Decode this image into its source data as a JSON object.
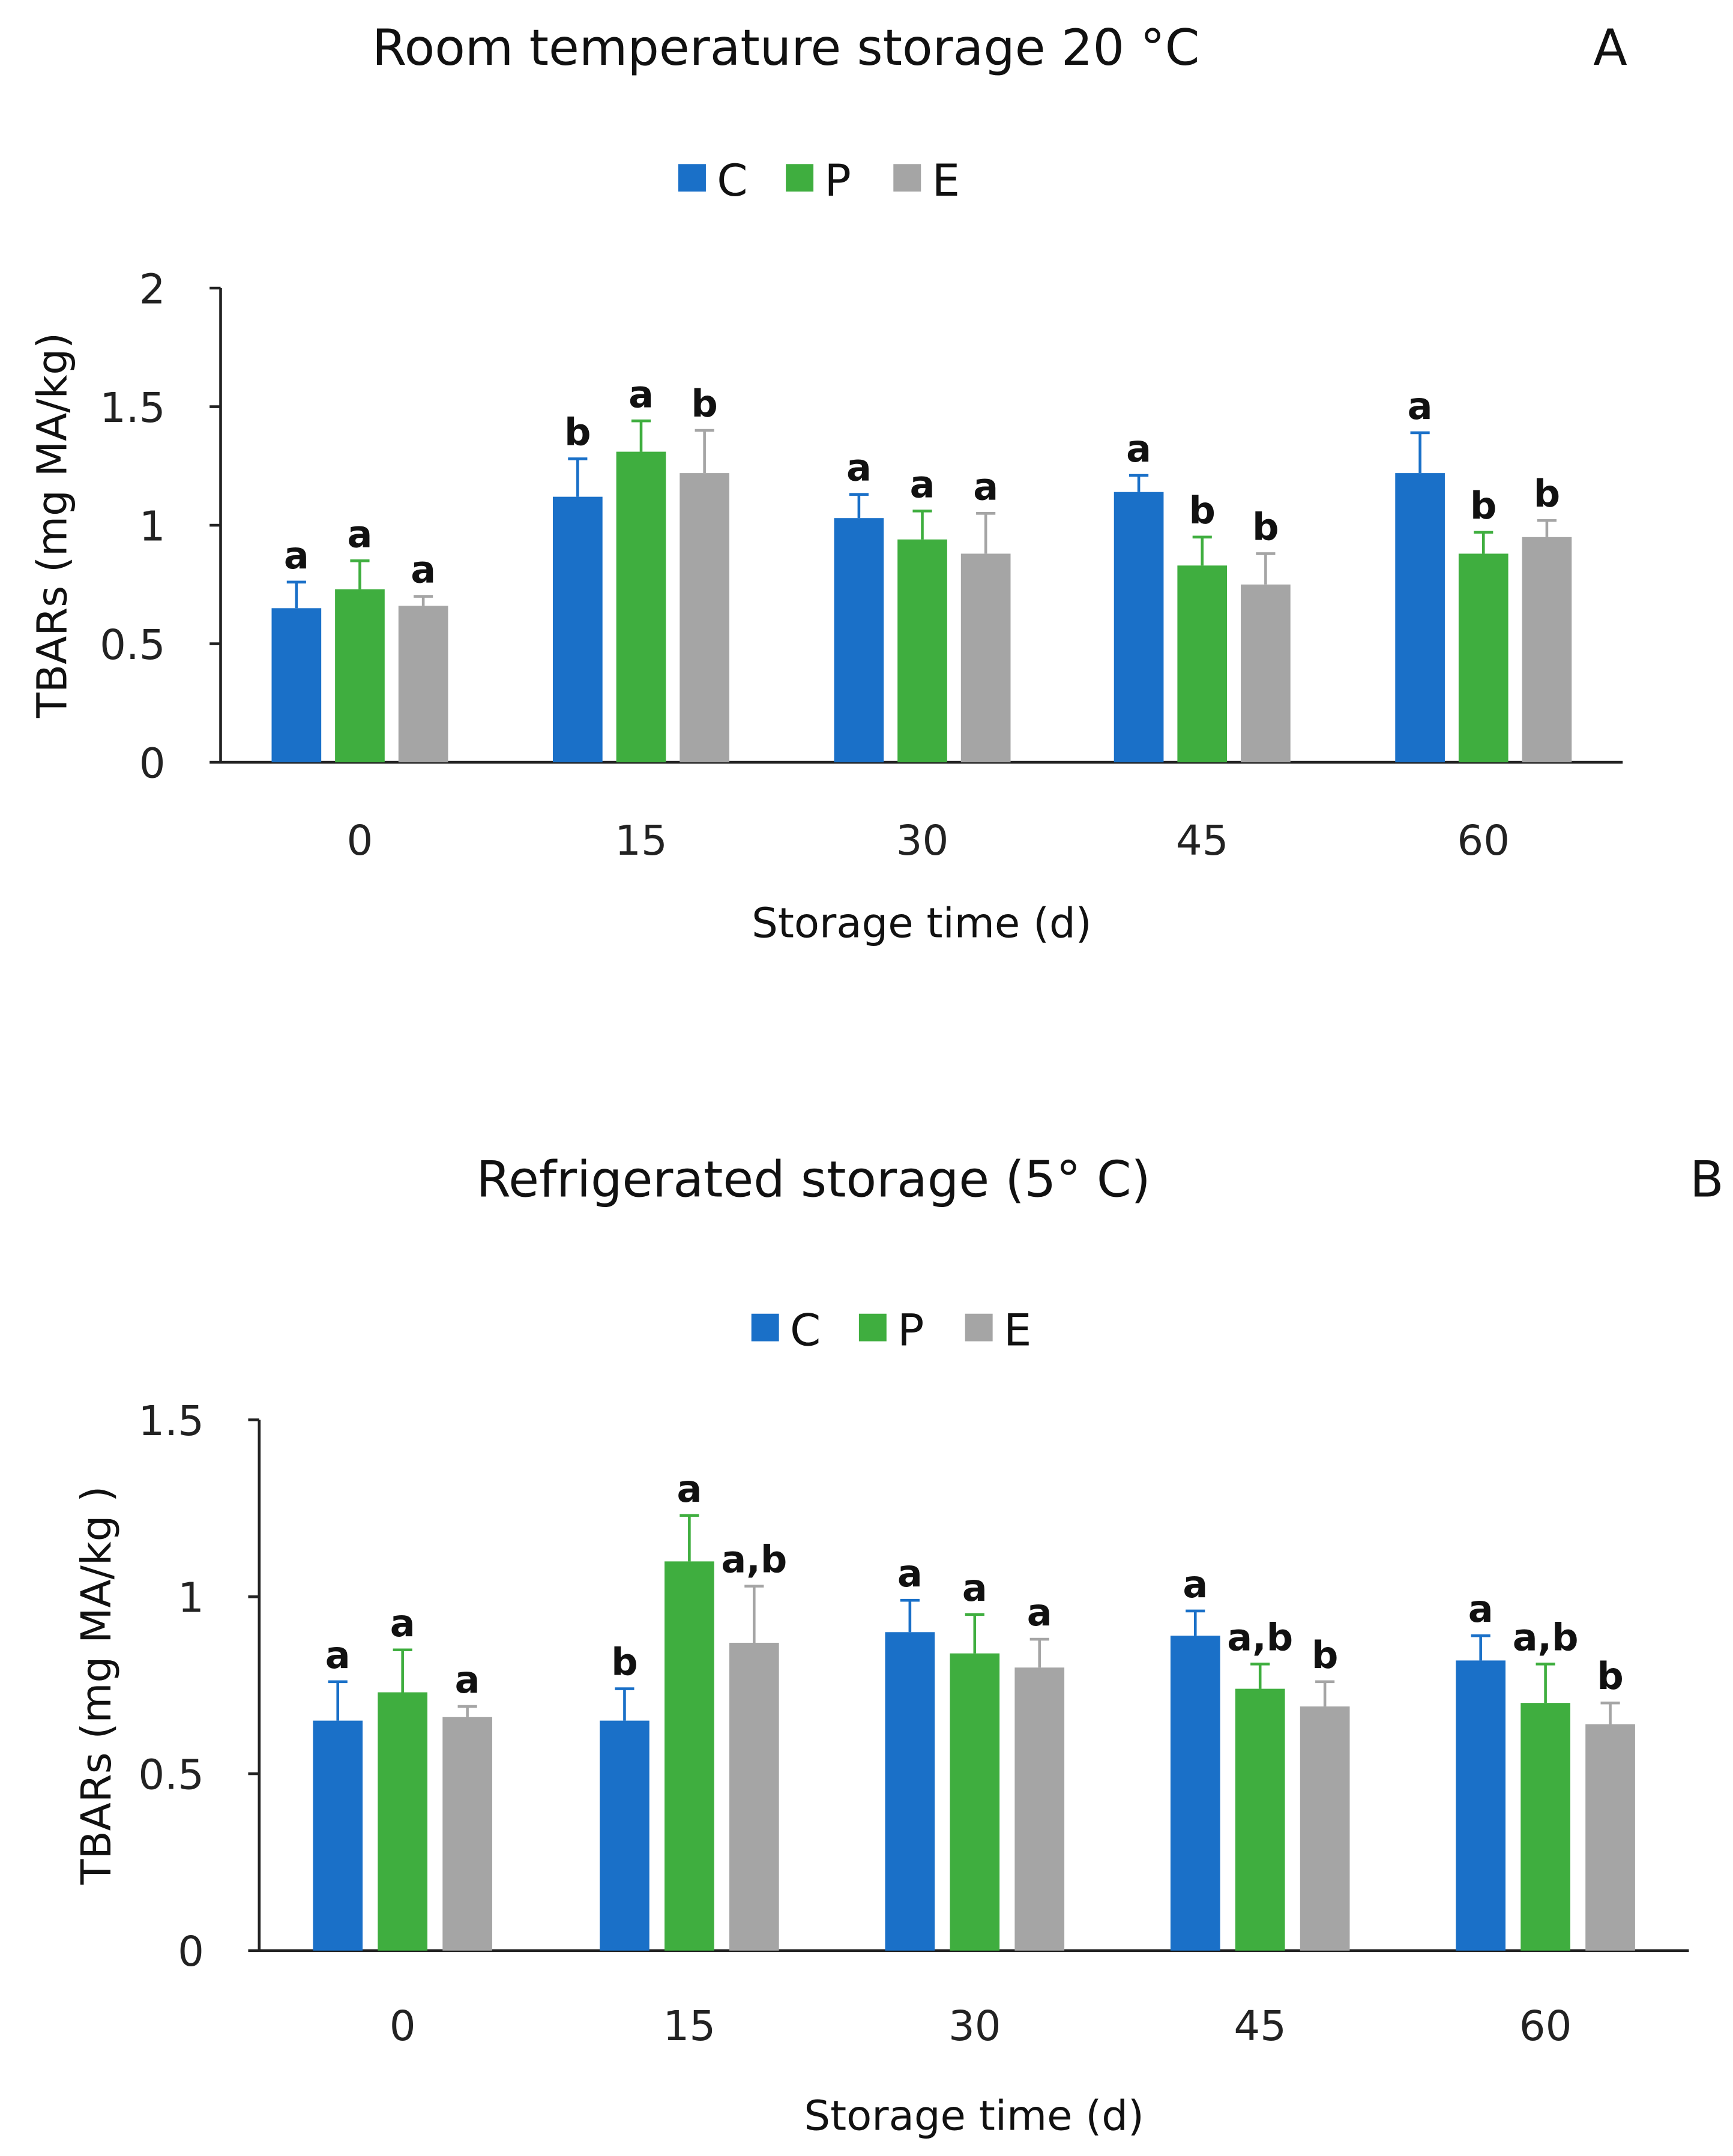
{
  "chart_data": [
    {
      "type": "bar",
      "panel": "A",
      "title": "Room temperature storage  20 °C",
      "xlabel": "Storage time (d)",
      "ylabel": "TBARs (mg MA/kg)",
      "ylim": [
        0,
        2
      ],
      "yticks": [
        "0",
        "0.5",
        "1",
        "1.5",
        "2"
      ],
      "ytick_values": [
        0,
        0.5,
        1,
        1.5,
        2
      ],
      "categories": [
        "0",
        "15",
        "30",
        "45",
        "60"
      ],
      "legend": "top-center",
      "series": [
        {
          "name": "C",
          "color": "#1a70c8",
          "values": [
            0.65,
            1.12,
            1.03,
            1.14,
            1.22
          ],
          "error_upper": [
            0.76,
            1.28,
            1.13,
            1.21,
            1.39
          ],
          "letters": [
            "a",
            "b",
            "a",
            "a",
            "a"
          ]
        },
        {
          "name": "P",
          "color": "#3fae3f",
          "values": [
            0.73,
            1.31,
            0.94,
            0.83,
            0.88
          ],
          "error_upper": [
            0.85,
            1.44,
            1.06,
            0.95,
            0.97
          ],
          "letters": [
            "a",
            "a",
            "a",
            "b",
            "b"
          ]
        },
        {
          "name": "E",
          "color": "#a5a5a5",
          "values": [
            0.66,
            1.22,
            0.88,
            0.75,
            0.95
          ],
          "error_upper": [
            0.7,
            1.4,
            1.05,
            0.88,
            1.02
          ],
          "letters": [
            "a",
            "b",
            "a",
            "b",
            "b"
          ]
        }
      ]
    },
    {
      "type": "bar",
      "panel": "B",
      "title": "Refrigerated storage  (5° C)",
      "xlabel": "Storage time (d)",
      "ylabel": "TBARs (mg MA/kg )",
      "ylim": [
        0,
        1.5
      ],
      "yticks": [
        "0",
        "0.5",
        "1",
        "1.5"
      ],
      "ytick_values": [
        0,
        0.5,
        1,
        1.5
      ],
      "categories": [
        "0",
        "15",
        "30",
        "45",
        "60"
      ],
      "legend": "top-center",
      "series": [
        {
          "name": "C",
          "color": "#1a70c8",
          "values": [
            0.65,
            0.65,
            0.9,
            0.89,
            0.82
          ],
          "error_upper": [
            0.76,
            0.74,
            0.99,
            0.96,
            0.89
          ],
          "letters": [
            "a",
            "b",
            "a",
            "a",
            "a"
          ]
        },
        {
          "name": "P",
          "color": "#3fae3f",
          "values": [
            0.73,
            1.1,
            0.84,
            0.74,
            0.7
          ],
          "error_upper": [
            0.85,
            1.23,
            0.95,
            0.81,
            0.81
          ],
          "letters": [
            "a",
            "a",
            "a",
            "a,b",
            "a,b"
          ]
        },
        {
          "name": "E",
          "color": "#a5a5a5",
          "values": [
            0.66,
            0.87,
            0.8,
            0.69,
            0.64
          ],
          "error_upper": [
            0.69,
            1.03,
            0.88,
            0.76,
            0.7
          ],
          "letters": [
            "a",
            "a,b",
            "a",
            "b",
            "b"
          ]
        }
      ]
    }
  ]
}
